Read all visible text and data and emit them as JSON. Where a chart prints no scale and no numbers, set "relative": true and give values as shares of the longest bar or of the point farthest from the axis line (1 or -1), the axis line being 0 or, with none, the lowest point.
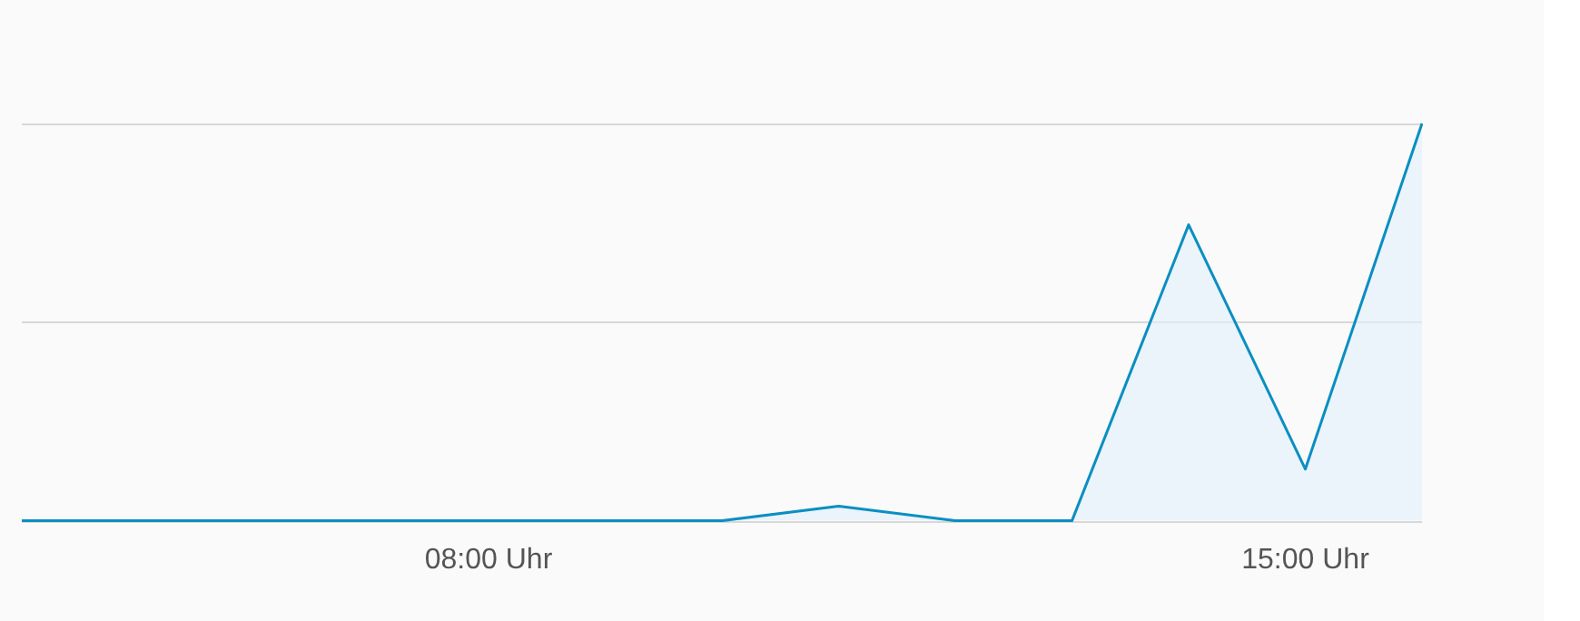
{
  "chart_data": {
    "type": "area",
    "relative": true,
    "legend": false,
    "ref_lines": [
      {
        "axis": "y",
        "value": 0.5,
        "color": "#d8d8d8"
      },
      {
        "axis": "y",
        "value": 1,
        "color": "#d8d8d8"
      }
    ],
    "categories": [
      null,
      null,
      null,
      null,
      "08:00 Uhr",
      null,
      null,
      null,
      null,
      null,
      null,
      "15:00 Uhr",
      null
    ],
    "series": [
      {
        "color": "#0a8fc0",
        "values": [
          0,
          0,
          0,
          0,
          0,
          0,
          0,
          0.037,
          0,
          0,
          0.745,
          0.13,
          1
        ]
      }
    ]
  }
}
